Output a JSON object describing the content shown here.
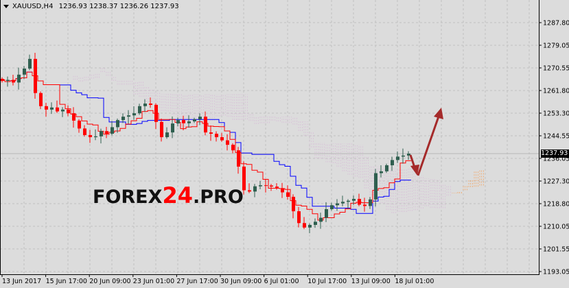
{
  "header": {
    "symbol": "XAUUSD,H4",
    "open": "1236.93",
    "high": "1238.37",
    "low": "1236.26",
    "close": "1237.93"
  },
  "watermark": {
    "part1": "FOREX",
    "part2": "24",
    "part3": ".PRO"
  },
  "current_price_label": "1237.93",
  "colors": {
    "background": "#dcdcdc",
    "bull_candle": "#2f5f4f",
    "bear_candle": "#ff0000",
    "tenkan": "#ff0000",
    "kijun": "#0000ff",
    "cloud_a": "#f4a460",
    "cloud_b": "#d8bfd8",
    "arrow": "#a52a2a"
  },
  "chart_data": {
    "type": "candlestick",
    "indicator": "Ichimoku",
    "ylim": [
      1193.05,
      1287.8
    ],
    "y_ticks": [
      "1287.80",
      "1279.05",
      "1270.55",
      "1261.80",
      "1253.30",
      "1244.55",
      "1236.05",
      "1227.30",
      "1218.80",
      "1210.05",
      "1201.55",
      "1193.05"
    ],
    "x_ticks": [
      "13 Jun 2017",
      "15 Jun 17:00",
      "20 Jun 09:00",
      "23 Jun 01:00",
      "27 Jun 17:00",
      "30 Jun 09:00",
      "6 Jul 01:00",
      "10 Jul 17:00",
      "13 Jul 09:00",
      "18 Jul 01:00"
    ],
    "grid": true,
    "close": [
      1265.6,
      1266,
      1265,
      1268,
      1270.3,
      1274,
      1261,
      1256,
      1254.7,
      1255.5,
      1254,
      1254.7,
      1253.3,
      1250.5,
      1247.5,
      1245,
      1244.2,
      1244.5,
      1246.5,
      1245.5,
      1248,
      1250.7,
      1252,
      1252.5,
      1253.3,
      1256,
      1257,
      1256.5,
      1250,
      1244.2,
      1246,
      1249.4,
      1250.7,
      1249.5,
      1250.2,
      1251,
      1252,
      1246,
      1245.5,
      1244.2,
      1243,
      1241.3,
      1239.2,
      1233,
      1224,
      1223.5,
      1225.5,
      1225.9,
      1225.8,
      1225.4,
      1224.8,
      1223.2,
      1221.5,
      1216,
      1211.5,
      1209.8,
      1210.8,
      1212,
      1213.5,
      1216.8,
      1218.3,
      1219,
      1219.6,
      1220,
      1220.7,
      1218.5,
      1218,
      1220.5,
      1230.5,
      1231.2,
      1233.5,
      1235.5,
      1236.8,
      1237.2,
      1237.93
    ],
    "last_price": 1237.93
  }
}
